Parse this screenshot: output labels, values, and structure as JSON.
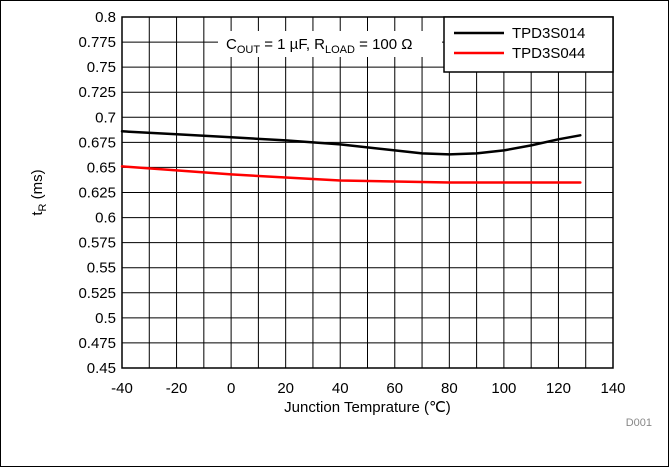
{
  "chart_data": {
    "type": "line",
    "xlabel": "Junction Temprature (℃)",
    "ylabel_main": "t",
    "ylabel_sub": "R",
    "ylabel_unit": " (ms)",
    "xlim": [
      -40,
      140
    ],
    "ylim": [
      0.45,
      0.8
    ],
    "xticks": [
      -40,
      -20,
      0,
      20,
      40,
      60,
      80,
      100,
      120,
      140
    ],
    "yticks": [
      "0.45",
      "0.475",
      "0.5",
      "0.525",
      "0.55",
      "0.575",
      "0.6",
      "0.625",
      "0.65",
      "0.675",
      "0.7",
      "0.725",
      "0.75",
      "0.775",
      "0.8"
    ],
    "x_minor_step": 10,
    "grid": true,
    "legend_position": "top-right",
    "annotation": {
      "c_main": "C",
      "c_sub": "OUT",
      "c_value": " = 1 µF, R",
      "r_sub": "LOAD",
      "r_value": " = 100 Ω"
    },
    "figure_code": "D001",
    "series": [
      {
        "name": "TPD3S014",
        "color": "#000000",
        "x": [
          -40,
          -20,
          0,
          20,
          40,
          60,
          70,
          80,
          90,
          100,
          110,
          120,
          128
        ],
        "y": [
          0.686,
          0.683,
          0.68,
          0.677,
          0.673,
          0.667,
          0.664,
          0.663,
          0.664,
          0.667,
          0.672,
          0.678,
          0.682
        ]
      },
      {
        "name": "TPD3S044",
        "color": "#ff0000",
        "x": [
          -40,
          -20,
          0,
          20,
          40,
          60,
          80,
          100,
          120,
          128
        ],
        "y": [
          0.651,
          0.647,
          0.643,
          0.64,
          0.637,
          0.636,
          0.635,
          0.635,
          0.635,
          0.635
        ]
      }
    ]
  }
}
